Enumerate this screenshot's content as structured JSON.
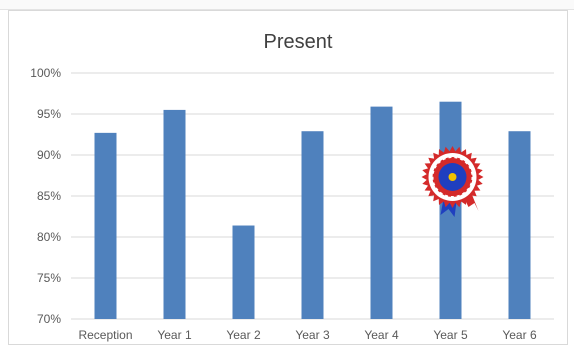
{
  "chart_data": {
    "type": "bar",
    "title": "Present",
    "categories": [
      "Reception",
      "Year 1",
      "Year 2",
      "Year 3",
      "Year 4",
      "Year 5",
      "Year 6"
    ],
    "values": [
      92.7,
      95.5,
      81.4,
      92.9,
      95.9,
      96.5,
      92.9
    ],
    "ylim": [
      70,
      100
    ],
    "yticks": [
      "70%",
      "75%",
      "80%",
      "85%",
      "90%",
      "95%",
      "100%"
    ],
    "ytick_values": [
      70,
      75,
      80,
      85,
      90,
      95,
      100
    ],
    "grid": true,
    "bar_color": "#4f81bd",
    "gridline_color": "#d9d9d9",
    "axis_text_color": "#595959",
    "title_color": "#404040"
  },
  "decoration": {
    "icon": "award-rosette-icon",
    "rosette_colors": [
      "#d42a2a",
      "#ffffff",
      "#1f3fbf",
      "#f2c200"
    ]
  }
}
